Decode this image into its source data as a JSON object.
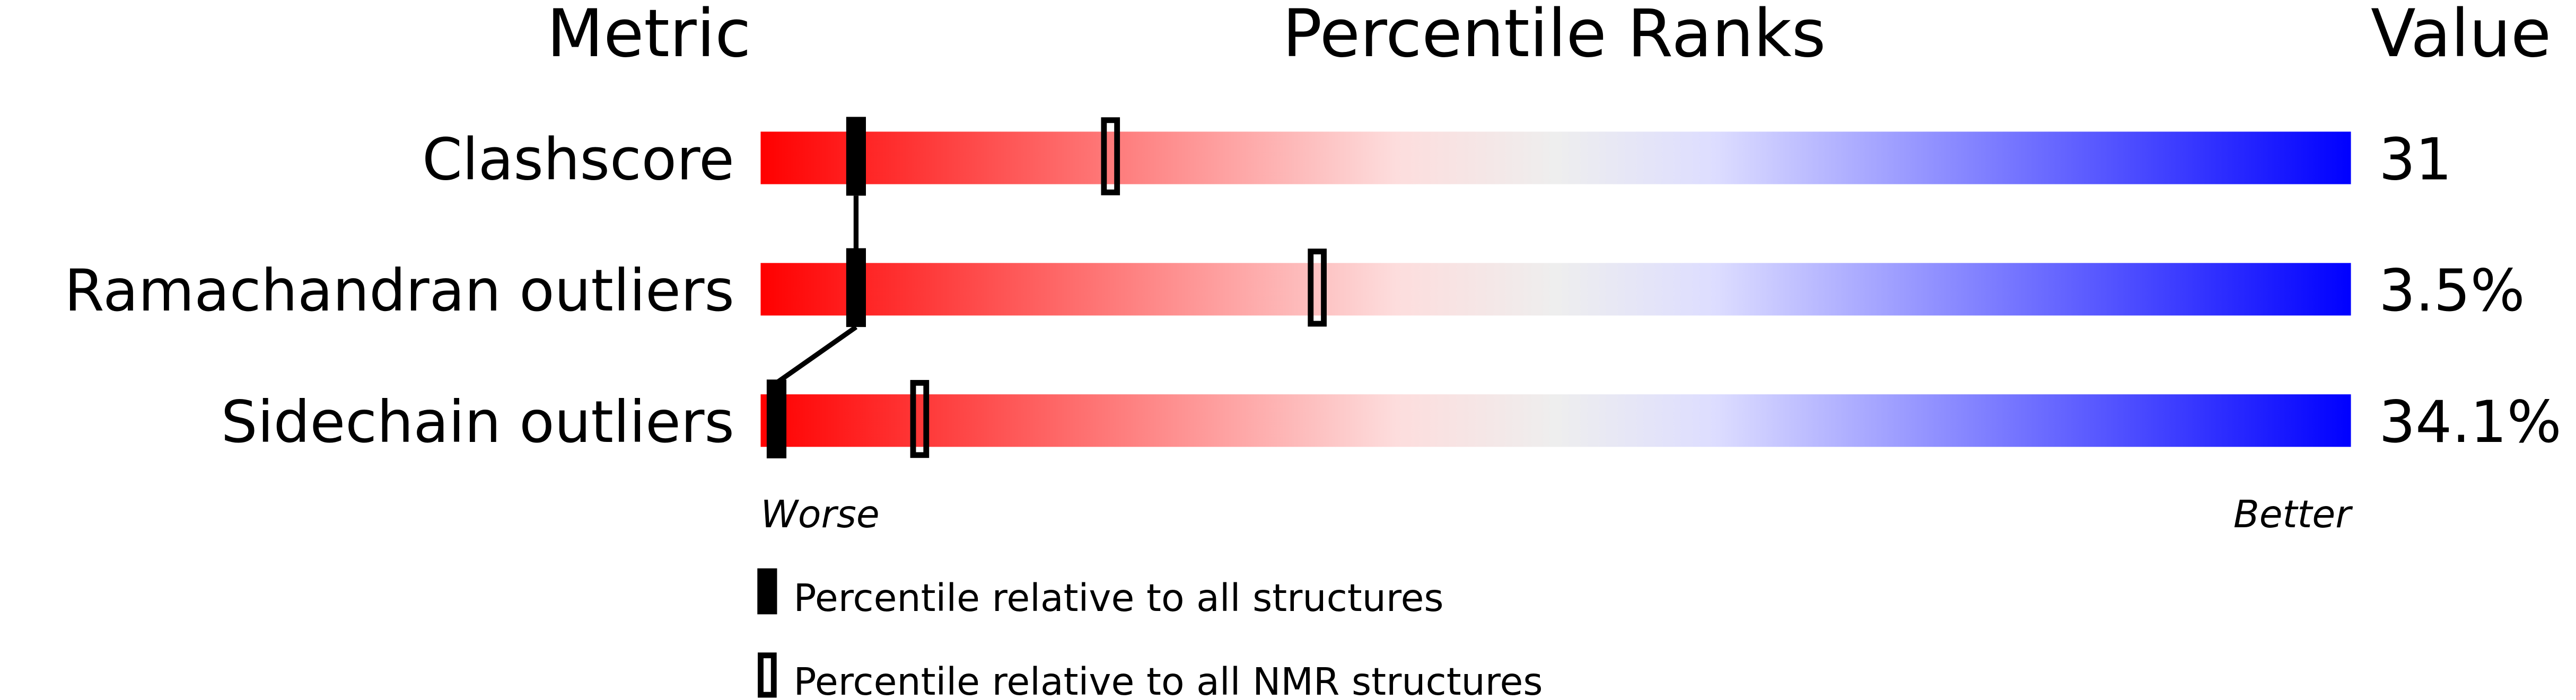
{
  "chart_data": {
    "type": "percentile-slider",
    "headers": {
      "metric": "Metric",
      "ranks": "Percentile Ranks",
      "value": "Value"
    },
    "xlim": [
      0,
      100
    ],
    "axis_labels": {
      "left": "Worse",
      "right": "Better"
    },
    "metrics": [
      {
        "name": "Clashscore",
        "value": "31",
        "percentile_all": 6,
        "percentile_nmr": 22
      },
      {
        "name": "Ramachandran outliers",
        "value": "3.5%",
        "percentile_all": 6,
        "percentile_nmr": 35
      },
      {
        "name": "Sidechain outliers",
        "value": "34.1%",
        "percentile_all": 1,
        "percentile_nmr": 10
      }
    ],
    "legend": {
      "all": "Percentile relative to all structures",
      "nmr": "Percentile relative to all NMR structures"
    },
    "gradient_colors": [
      "#ff0000",
      "#fddddd",
      "#eeeeee",
      "#ddddff",
      "#0000ff"
    ]
  }
}
